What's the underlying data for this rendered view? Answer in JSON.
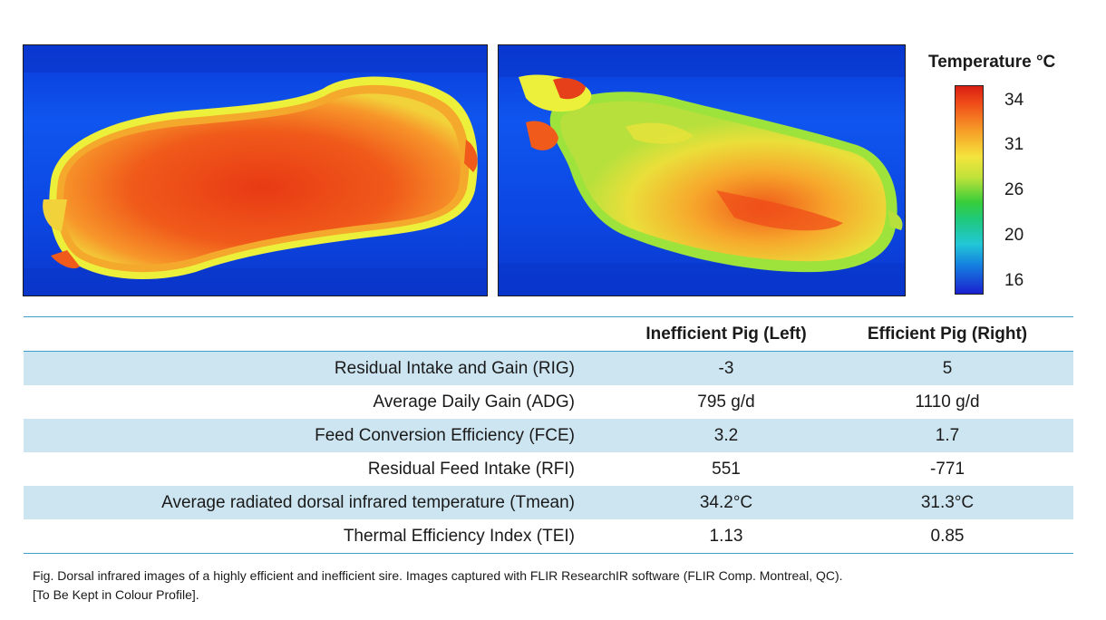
{
  "scale": {
    "title": "Temperature °C",
    "ticks": [
      "34",
      "31",
      "26",
      "20",
      "16"
    ]
  },
  "images": {
    "left": {
      "animal": "inefficient pig"
    },
    "right": {
      "animal": "efficient pig"
    }
  },
  "table": {
    "headers": [
      "",
      "Inefficient Pig (Left)",
      "Efficient Pig (Right)"
    ],
    "rows": [
      {
        "metric": "Residual Intake and Gain (RIG)",
        "left": "-3",
        "right": "5"
      },
      {
        "metric": "Average Daily Gain (ADG)",
        "left": "795 g/d",
        "right": "1110 g/d"
      },
      {
        "metric": "Feed Conversion Efficiency (FCE)",
        "left": "3.2",
        "right": "1.7"
      },
      {
        "metric": "Residual Feed Intake (RFI)",
        "left": "551",
        "right": "-771"
      },
      {
        "metric": "Average radiated dorsal infrared temperature (Tmean)",
        "left": "34.2°C",
        "right": "31.3°C"
      },
      {
        "metric": "Thermal Efficiency Index (TEI)",
        "left": "1.13",
        "right": "0.85"
      }
    ]
  },
  "caption": {
    "line1": "Fig. Dorsal infrared images of a highly efficient and inefficient sire. Images captured with FLIR ResearchIR software (FLIR Comp. Montreal, QC).",
    "line2": "[To Be Kept in Colour Profile]."
  },
  "colors": {
    "header_rule": "#3ba0c9",
    "row_band": "#cde5f1",
    "cold": "#0f55ee",
    "hot": "#ef4a18"
  }
}
